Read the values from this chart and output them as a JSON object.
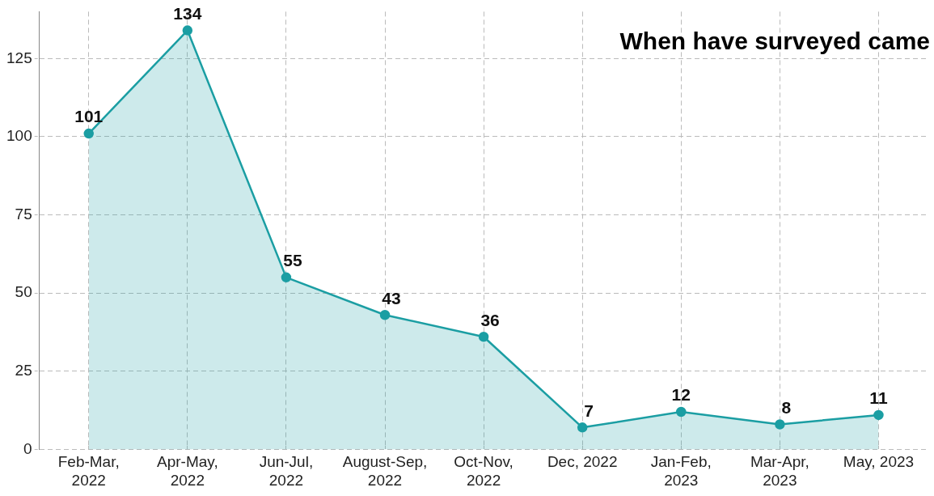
{
  "chart_data": {
    "type": "area",
    "title": "When have surveyed came",
    "categories": [
      "Feb-Mar, 2022",
      "Apr-May, 2022",
      "Jun-Jul, 2022",
      "August-Sep, 2022",
      "Oct-Nov, 2022",
      "Dec, 2022",
      "Jan-Feb, 2023",
      "Mar-Apr, 2023",
      "May, 2023"
    ],
    "values": [
      101,
      134,
      55,
      43,
      36,
      7,
      12,
      8,
      11
    ],
    "color": "#1b9ea3",
    "ylim": [
      0,
      140
    ],
    "yticks": [
      0,
      25,
      50,
      75,
      100,
      125
    ],
    "grid": true,
    "marker": "circle",
    "data_labels": true
  }
}
